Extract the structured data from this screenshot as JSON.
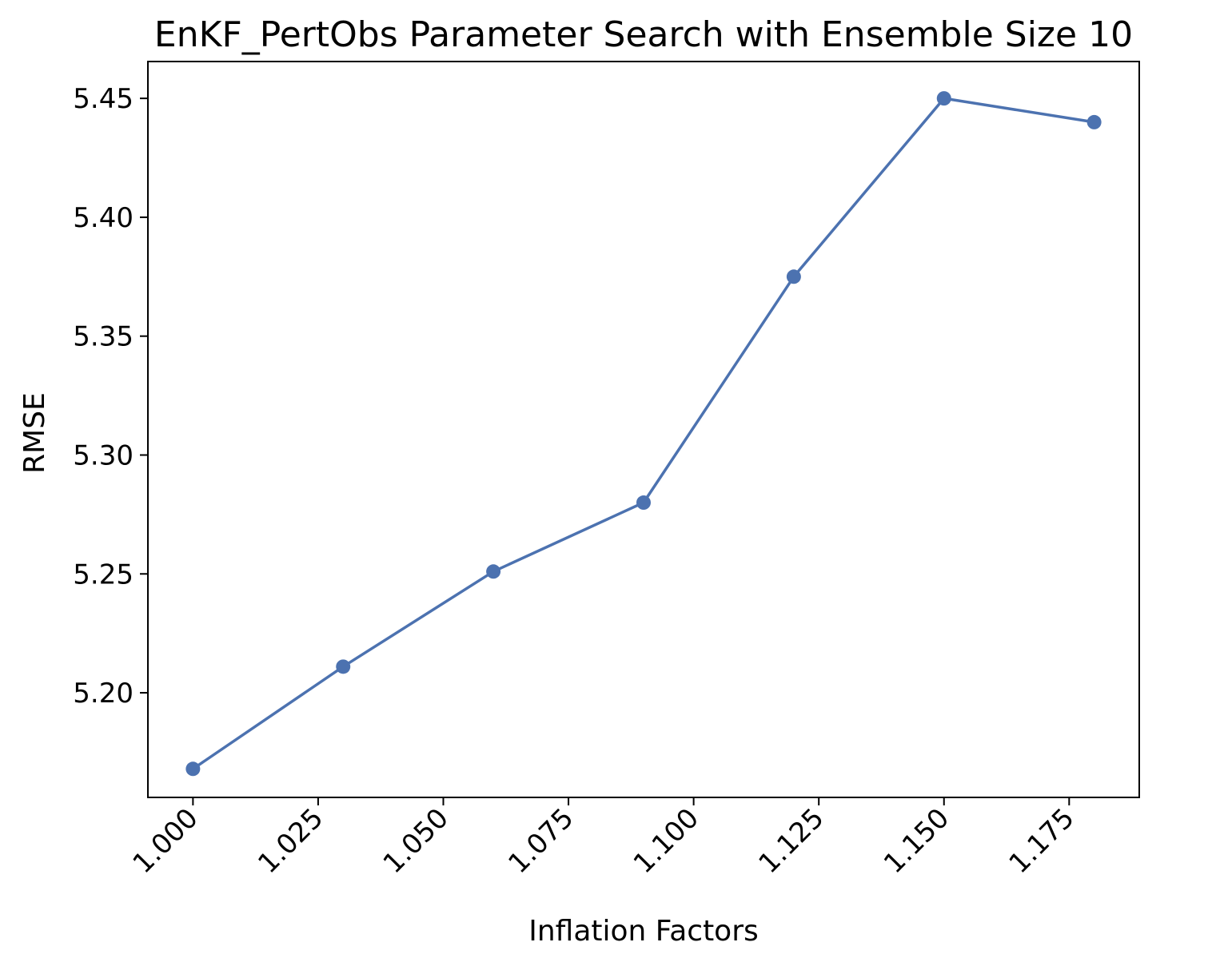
{
  "chart_data": {
    "type": "line",
    "title": "EnKF_PertObs Parameter Search with Ensemble Size 10",
    "xlabel": "Inflation Factors",
    "ylabel": "RMSE",
    "x": [
      1.0,
      1.03,
      1.06,
      1.09,
      1.12,
      1.15,
      1.18
    ],
    "series": [
      {
        "values": [
          5.168,
          5.211,
          5.251,
          5.28,
          5.375,
          5.45,
          5.44
        ],
        "color": "#4c72b0",
        "marker": "circle"
      }
    ],
    "xlim": [
      0.991,
      1.189
    ],
    "ylim": [
      5.156,
      5.4655
    ],
    "xticks": [
      1.0,
      1.025,
      1.05,
      1.075,
      1.1,
      1.125,
      1.15,
      1.175
    ],
    "xtick_labels": [
      "1.000",
      "1.025",
      "1.050",
      "1.075",
      "1.100",
      "1.125",
      "1.150",
      "1.175"
    ],
    "yticks": [
      5.2,
      5.25,
      5.3,
      5.35,
      5.4,
      5.45
    ],
    "ytick_labels": [
      "5.20",
      "5.25",
      "5.30",
      "5.35",
      "5.40",
      "5.45"
    ],
    "xtick_rotation": "45-degree",
    "grid": false,
    "legend": "none"
  }
}
